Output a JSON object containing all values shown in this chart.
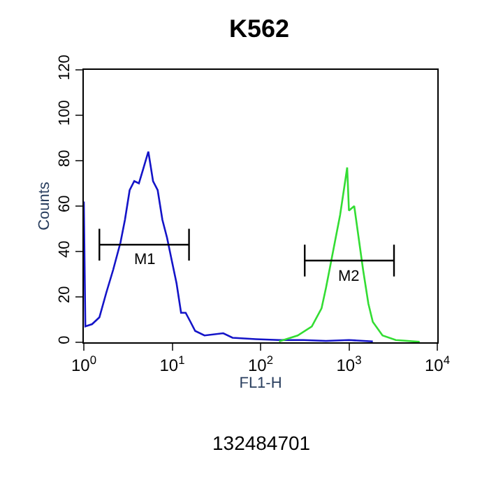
{
  "chart_data": {
    "type": "line",
    "title": "K562",
    "xlabel": "FL1-H",
    "ylabel": "Counts",
    "log": "x",
    "xlim": [
      1,
      10000
    ],
    "ylim": [
      0,
      120
    ],
    "xticks": [
      {
        "value": 1,
        "label": "10$^{0}$"
      },
      {
        "value": 10,
        "label": "10$^{1}$"
      },
      {
        "value": 100,
        "label": "10$^{2}$"
      },
      {
        "value": 1000,
        "label": "10$^{3}$"
      },
      {
        "value": 10000,
        "label": "10$^{4}$"
      }
    ],
    "yticks": [
      0,
      20,
      40,
      60,
      80,
      100,
      120
    ],
    "marker": "none",
    "series": [
      {
        "color": "#1414c8",
        "x": [
          1,
          1.04,
          1.24,
          1.5,
          1.8,
          2.15,
          2.6,
          2.92,
          3.3,
          3.72,
          4.2,
          4.75,
          5.37,
          6.07,
          6.85,
          7.74,
          8.75,
          9.89,
          11.2,
          12.6,
          14.2,
          16.1,
          18.2,
          23.2,
          37.8,
          48.2,
          88.5,
          162,
          302,
          550,
          1000,
          1862
        ],
        "values": [
          62,
          7,
          8,
          11,
          22,
          32,
          44,
          54,
          67,
          71,
          70,
          77,
          84,
          71,
          67,
          54,
          46,
          36,
          26,
          13,
          13,
          9,
          5,
          3,
          4,
          2,
          1.4,
          1,
          1,
          0.6,
          1,
          0.4
        ]
      },
      {
        "color": "#33dd33",
        "x": [
          162,
          263,
          380,
          490,
          550,
          617,
          708,
          794,
          891,
          955,
          1000,
          1148,
          1288,
          1445,
          1660,
          1862,
          2399,
          3388,
          6310
        ],
        "values": [
          0.4,
          3,
          7,
          15,
          24,
          34,
          46,
          56,
          69,
          77,
          58,
          60,
          46,
          32,
          17,
          9,
          3,
          1,
          0.2
        ]
      },
      {
        "color": "#000000",
        "x": [
          1.5,
          15.5
        ],
        "values": [
          43,
          43
        ],
        "errors": [
          7,
          7
        ]
      },
      {
        "color": "#000000",
        "x": [
          316,
          3236
        ],
        "values": [
          36,
          36
        ],
        "errors": [
          7,
          7
        ]
      }
    ],
    "annotations": [
      {
        "text": "M1",
        "x": 4.8,
        "y": 43
      },
      {
        "text": "M2",
        "x": 1000,
        "y": 36
      },
      "132484701"
    ]
  }
}
